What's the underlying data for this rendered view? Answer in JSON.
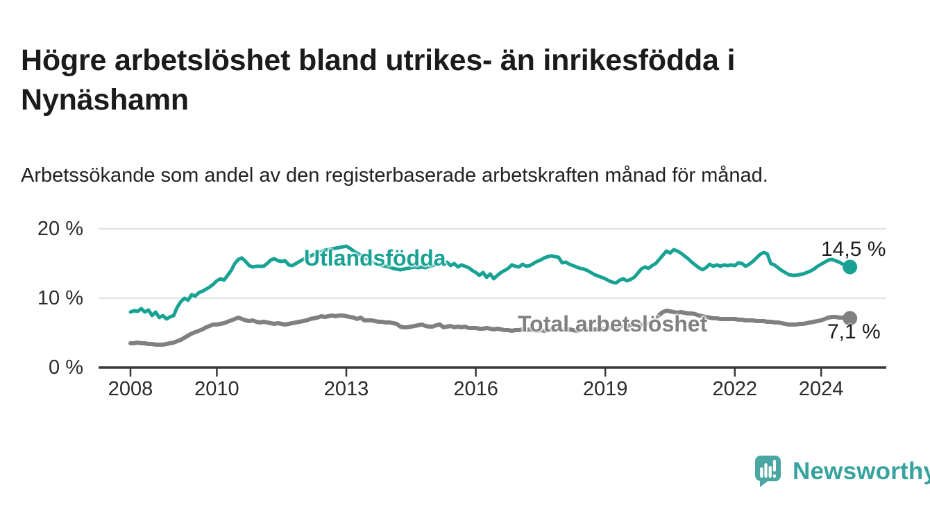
{
  "chart_data": {
    "type": "line",
    "title": "Högre arbetslöshet bland utrikes- än inrikesfödda i Nynäshamn",
    "subtitle": "Arbetssökande som andel av den registerbaserade arbetskraften månad för månad.",
    "unit": "%",
    "frequency": "monthly",
    "x_start": "2008-01",
    "x_end": "2024-09",
    "ylim": [
      0,
      20
    ],
    "grid": "horizontal",
    "legend": "inline-labels",
    "colors": {
      "grid": "#d9d9d9",
      "axis": "#383838"
    },
    "y_ticks": [
      {
        "value": 0,
        "label": "0 %"
      },
      {
        "value": 10,
        "label": "10 %"
      },
      {
        "value": 20,
        "label": "20 %"
      }
    ],
    "x_ticks": [
      {
        "year": 2008,
        "label": "2008"
      },
      {
        "year": 2010,
        "label": "2010"
      },
      {
        "year": 2013,
        "label": "2013"
      },
      {
        "year": 2016,
        "label": "2016"
      },
      {
        "year": 2019,
        "label": "2019"
      },
      {
        "year": 2022,
        "label": "2022"
      },
      {
        "year": 2024,
        "label": "2024"
      }
    ],
    "series": [
      {
        "name": "Utlandsfödda",
        "color": "#17a294",
        "end_label": "14,5 %",
        "end_value": 14.5,
        "start": "2008-01",
        "values": [
          8.0,
          8.2,
          8.1,
          8.5,
          8.0,
          8.3,
          7.5,
          8.0,
          7.2,
          7.5,
          7.0,
          7.3,
          7.5,
          8.7,
          9.5,
          10.0,
          9.7,
          10.5,
          10.3,
          10.8,
          11.0,
          11.3,
          11.6,
          12.0,
          12.5,
          12.8,
          12.6,
          13.3,
          14.0,
          15.0,
          15.6,
          15.8,
          15.3,
          14.7,
          14.5,
          14.6,
          14.6,
          14.6,
          15.0,
          15.5,
          15.7,
          15.4,
          15.3,
          15.4,
          14.8,
          14.7,
          15.0,
          15.3,
          15.6,
          15.9,
          16.1,
          16.3,
          16.5,
          16.7,
          16.9,
          17.0,
          17.1,
          17.2,
          17.3,
          17.4,
          17.5,
          17.2,
          16.8,
          16.5,
          16.2,
          15.9,
          15.6,
          15.3,
          15.0,
          14.8,
          14.7,
          14.6,
          14.5,
          14.3,
          14.2,
          14.1,
          14.2,
          14.3,
          14.4,
          14.5,
          14.4,
          14.5,
          14.4,
          14.6,
          14.7,
          14.9,
          15.3,
          14.8,
          15.2,
          14.7,
          15.0,
          14.5,
          14.8,
          14.6,
          14.4,
          14.0,
          13.7,
          13.3,
          13.7,
          13.0,
          13.5,
          12.8,
          13.3,
          13.7,
          14.0,
          14.3,
          14.8,
          14.6,
          14.5,
          14.9,
          14.6,
          14.7,
          15.0,
          15.3,
          15.5,
          15.8,
          16.0,
          16.1,
          16.0,
          15.9,
          15.1,
          15.2,
          14.9,
          14.7,
          14.5,
          14.3,
          14.2,
          14.0,
          13.7,
          13.4,
          13.2,
          13.0,
          12.8,
          12.5,
          12.3,
          12.2,
          12.6,
          12.8,
          12.5,
          12.7,
          13.0,
          13.6,
          14.2,
          14.5,
          14.3,
          14.7,
          15.0,
          15.6,
          16.2,
          16.8,
          16.5,
          17.0,
          16.8,
          16.5,
          16.1,
          15.7,
          15.2,
          14.8,
          14.4,
          14.1,
          14.4,
          14.9,
          14.6,
          14.8,
          14.6,
          14.8,
          14.7,
          14.8,
          14.7,
          15.1,
          15.0,
          14.6,
          14.9,
          15.3,
          15.8,
          16.3,
          16.6,
          16.4,
          15.0,
          14.8,
          14.4,
          14.0,
          13.7,
          13.4,
          13.3,
          13.3,
          13.4,
          13.5,
          13.7,
          13.9,
          14.2,
          14.6,
          14.9,
          15.2,
          15.5,
          15.6,
          15.4,
          15.2,
          14.9,
          14.7,
          14.5
        ]
      },
      {
        "name": "Total arbetslöshet",
        "color": "#808080",
        "end_label": "7,1 %",
        "end_value": 7.1,
        "start": "2008-01",
        "values": [
          3.5,
          3.5,
          3.6,
          3.5,
          3.5,
          3.4,
          3.4,
          3.3,
          3.3,
          3.3,
          3.4,
          3.5,
          3.6,
          3.8,
          4.0,
          4.3,
          4.6,
          4.9,
          5.1,
          5.3,
          5.5,
          5.8,
          6.0,
          6.2,
          6.2,
          6.3,
          6.4,
          6.6,
          6.8,
          7.0,
          7.2,
          7.0,
          6.8,
          6.7,
          6.8,
          6.6,
          6.5,
          6.6,
          6.5,
          6.4,
          6.3,
          6.4,
          6.3,
          6.2,
          6.3,
          6.4,
          6.5,
          6.6,
          6.7,
          6.8,
          7.0,
          7.1,
          7.2,
          7.4,
          7.3,
          7.4,
          7.5,
          7.4,
          7.5,
          7.5,
          7.4,
          7.3,
          7.2,
          7.0,
          7.2,
          6.8,
          6.8,
          6.8,
          6.7,
          6.6,
          6.6,
          6.5,
          6.5,
          6.4,
          6.3,
          5.9,
          5.8,
          5.8,
          5.9,
          6.0,
          6.1,
          6.2,
          6.0,
          5.9,
          5.9,
          6.1,
          6.2,
          5.8,
          5.9,
          6.0,
          5.8,
          5.9,
          5.8,
          5.9,
          5.7,
          5.7,
          5.7,
          5.6,
          5.6,
          5.7,
          5.6,
          5.5,
          5.6,
          5.5,
          5.4,
          5.4,
          5.3,
          5.4,
          5.4,
          5.5,
          5.4,
          5.5,
          5.4,
          5.3,
          5.4,
          5.3,
          5.4,
          5.5,
          5.4,
          5.5,
          5.5,
          5.4,
          5.5,
          5.4,
          5.3,
          5.4,
          5.4,
          5.5,
          5.4,
          5.5,
          5.5,
          5.6,
          5.6,
          5.7,
          5.7,
          5.8,
          5.9,
          6.0,
          6.0,
          6.1,
          6.1,
          6.2,
          6.2,
          6.3,
          6.3,
          6.5,
          7.0,
          7.6,
          8.0,
          8.2,
          8.1,
          8.0,
          7.9,
          8.0,
          7.9,
          7.8,
          7.8,
          7.7,
          7.5,
          7.4,
          7.3,
          7.2,
          7.1,
          7.1,
          7.0,
          7.0,
          7.0,
          7.0,
          7.0,
          6.9,
          6.9,
          6.8,
          6.8,
          6.8,
          6.7,
          6.7,
          6.7,
          6.6,
          6.6,
          6.5,
          6.5,
          6.4,
          6.3,
          6.2,
          6.2,
          6.2,
          6.3,
          6.3,
          6.4,
          6.5,
          6.6,
          6.7,
          6.8,
          7.0,
          7.2,
          7.3,
          7.3,
          7.2,
          7.2,
          7.2,
          7.1
        ]
      }
    ]
  },
  "footer": {
    "brand": "Newsworthy",
    "brand_color": "#38a39e",
    "icon_color": "#4aa6a2"
  }
}
